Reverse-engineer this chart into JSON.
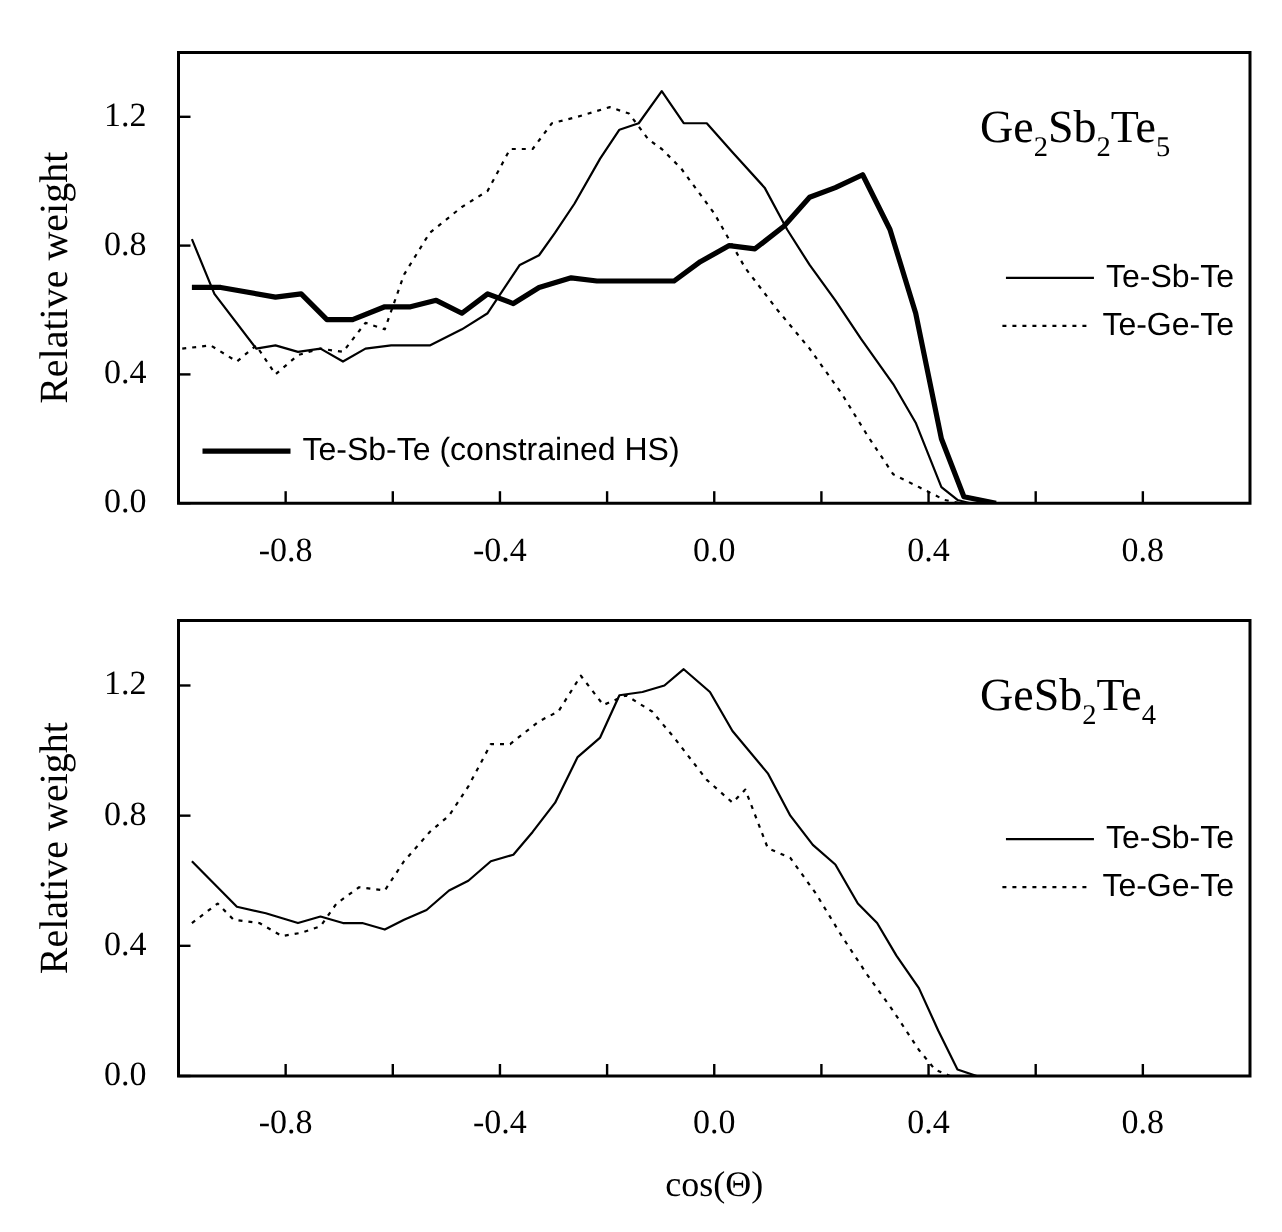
{
  "chart_data": [
    {
      "type": "line",
      "ylabel": "Relative weight",
      "annotations": [
        "Ge$_{2}$Sb$_{2}$Te$_{5}$"
      ],
      "xlim": [
        -1,
        1
      ],
      "xticks": [
        -0.8,
        {
          "value": -0.6,
          "label": null
        },
        -0.4,
        {
          "value": -0.2,
          "label": null
        },
        {
          "value": 0,
          "label": "0.0"
        },
        {
          "value": 0.2,
          "label": null
        },
        0.4,
        {
          "value": 0.6,
          "label": null
        },
        0.8
      ],
      "ylim": [
        0,
        1.4
      ],
      "yticks": [
        {
          "value": 0,
          "label": "0.0"
        },
        0.4,
        0.8,
        1.2
      ],
      "grid": false,
      "legend": "right",
      "marker": "none",
      "series": [
        {
          "name": "Te-Sb-Te",
          "color": "#000000",
          "line_style": "solid",
          "x": [
            -0.975,
            -0.933,
            -0.855,
            -0.819,
            -0.777,
            -0.735,
            -0.693,
            -0.651,
            -0.603,
            -0.531,
            -0.471,
            -0.423,
            -0.363,
            -0.327,
            -0.297,
            -0.261,
            -0.213,
            -0.177,
            -0.141,
            -0.098,
            -0.057,
            -0.014,
            0.034,
            0.094,
            0.136,
            0.178,
            0.226,
            0.274,
            0.334,
            0.376,
            0.424,
            0.454,
            0.478
          ],
          "values": [
            0.82,
            0.65,
            0.48,
            0.49,
            0.47,
            0.48,
            0.44,
            0.48,
            0.49,
            0.49,
            0.54,
            0.59,
            0.74,
            0.77,
            0.84,
            0.93,
            1.07,
            1.16,
            1.18,
            1.28,
            1.18,
            1.18,
            1.09,
            0.98,
            0.85,
            0.74,
            0.63,
            0.51,
            0.37,
            0.25,
            0.05,
            0.01,
            0
          ]
        },
        {
          "name": "Te-Ge-Te",
          "color": "#000000",
          "line_style": "dotted",
          "x": [
            -0.993,
            -0.94,
            -0.891,
            -0.855,
            -0.819,
            -0.777,
            -0.735,
            -0.693,
            -0.651,
            -0.615,
            -0.579,
            -0.531,
            -0.471,
            -0.423,
            -0.381,
            -0.339,
            -0.303,
            -0.255,
            -0.195,
            -0.159,
            -0.123,
            -0.098,
            -0.062,
            0,
            0.058,
            0.118,
            0.178,
            0.238,
            0.286,
            0.334,
            0.382,
            0.43,
            0.46
          ],
          "values": [
            0.48,
            0.49,
            0.44,
            0.49,
            0.4,
            0.46,
            0.48,
            0.47,
            0.56,
            0.54,
            0.71,
            0.84,
            0.92,
            0.97,
            1.1,
            1.1,
            1.18,
            1.2,
            1.23,
            1.21,
            1.13,
            1.1,
            1.04,
            0.9,
            0.73,
            0.6,
            0.48,
            0.34,
            0.21,
            0.09,
            0.05,
            0.01,
            0
          ]
        },
        {
          "name": "Te-Sb-Te (constrained HS)",
          "color": "#000000",
          "line_style": "solid",
          "x": [
            -0.975,
            -0.921,
            -0.819,
            -0.771,
            -0.723,
            -0.675,
            -0.615,
            -0.567,
            -0.519,
            -0.471,
            -0.423,
            -0.375,
            -0.327,
            -0.267,
            -0.219,
            -0.134,
            -0.075,
            -0.026,
            0.028,
            0.076,
            0.13,
            0.178,
            0.226,
            0.277,
            0.328,
            0.376,
            0.424,
            0.466,
            0.526
          ],
          "values": [
            0.67,
            0.67,
            0.64,
            0.65,
            0.57,
            0.57,
            0.61,
            0.61,
            0.63,
            0.59,
            0.65,
            0.62,
            0.67,
            0.7,
            0.69,
            0.69,
            0.69,
            0.75,
            0.8,
            0.79,
            0.86,
            0.95,
            0.98,
            1.02,
            0.85,
            0.59,
            0.2,
            0.02,
            0
          ]
        }
      ]
    },
    {
      "type": "line",
      "xlabel": "cos(Θ)",
      "ylabel": "Relative weight",
      "annotations": [
        "GeSb$_{2}$Te$_{4}$"
      ],
      "xlim": [
        -1,
        1
      ],
      "xticks": [
        -0.8,
        {
          "value": -0.6,
          "label": null
        },
        -0.4,
        {
          "value": -0.2,
          "label": null
        },
        {
          "value": 0,
          "label": "0.0"
        },
        {
          "value": 0.2,
          "label": null
        },
        0.4,
        {
          "value": 0.6,
          "label": null
        },
        0.8
      ],
      "ylim": [
        0,
        1.4
      ],
      "yticks": [
        {
          "value": 0,
          "label": "0.0"
        },
        0.4,
        0.8,
        1.2
      ],
      "grid": false,
      "legend": "right",
      "marker": "none",
      "series": [
        {
          "name": "Te-Sb-Te",
          "color": "#000000",
          "line_style": "solid",
          "x": [
            -0.975,
            -0.933,
            -0.891,
            -0.837,
            -0.777,
            -0.735,
            -0.693,
            -0.657,
            -0.615,
            -0.579,
            -0.537,
            -0.495,
            -0.459,
            -0.417,
            -0.375,
            -0.339,
            -0.297,
            -0.255,
            -0.213,
            -0.177,
            -0.134,
            -0.093,
            -0.057,
            -0.008,
            0.034,
            0.1,
            0.142,
            0.184,
            0.226,
            0.268,
            0.304,
            0.34,
            0.382,
            0.418,
            0.454,
            0.49
          ],
          "values": [
            0.66,
            0.59,
            0.52,
            0.5,
            0.47,
            0.49,
            0.47,
            0.47,
            0.45,
            0.48,
            0.51,
            0.57,
            0.6,
            0.66,
            0.68,
            0.75,
            0.84,
            0.98,
            1.04,
            1.17,
            1.18,
            1.2,
            1.25,
            1.18,
            1.06,
            0.93,
            0.8,
            0.71,
            0.65,
            0.53,
            0.47,
            0.37,
            0.27,
            0.14,
            0.02,
            0
          ]
        },
        {
          "name": "Te-Ge-Te",
          "color": "#000000",
          "line_style": "dotted",
          "x": [
            -0.975,
            -0.927,
            -0.897,
            -0.849,
            -0.807,
            -0.771,
            -0.735,
            -0.705,
            -0.663,
            -0.615,
            -0.579,
            -0.531,
            -0.495,
            -0.459,
            -0.417,
            -0.381,
            -0.327,
            -0.291,
            -0.249,
            -0.207,
            -0.165,
            -0.116,
            -0.075,
            -0.014,
            0.034,
            0.058,
            0.1,
            0.142,
            0.19,
            0.238,
            0.286,
            0.334,
            0.382,
            0.412,
            0.44
          ],
          "values": [
            0.47,
            0.53,
            0.48,
            0.47,
            0.43,
            0.44,
            0.46,
            0.53,
            0.58,
            0.57,
            0.66,
            0.75,
            0.8,
            0.89,
            1.02,
            1.02,
            1.09,
            1.12,
            1.23,
            1.14,
            1.17,
            1.12,
            1.04,
            0.91,
            0.84,
            0.88,
            0.7,
            0.67,
            0.56,
            0.43,
            0.31,
            0.2,
            0.08,
            0.02,
            0
          ]
        }
      ]
    }
  ]
}
